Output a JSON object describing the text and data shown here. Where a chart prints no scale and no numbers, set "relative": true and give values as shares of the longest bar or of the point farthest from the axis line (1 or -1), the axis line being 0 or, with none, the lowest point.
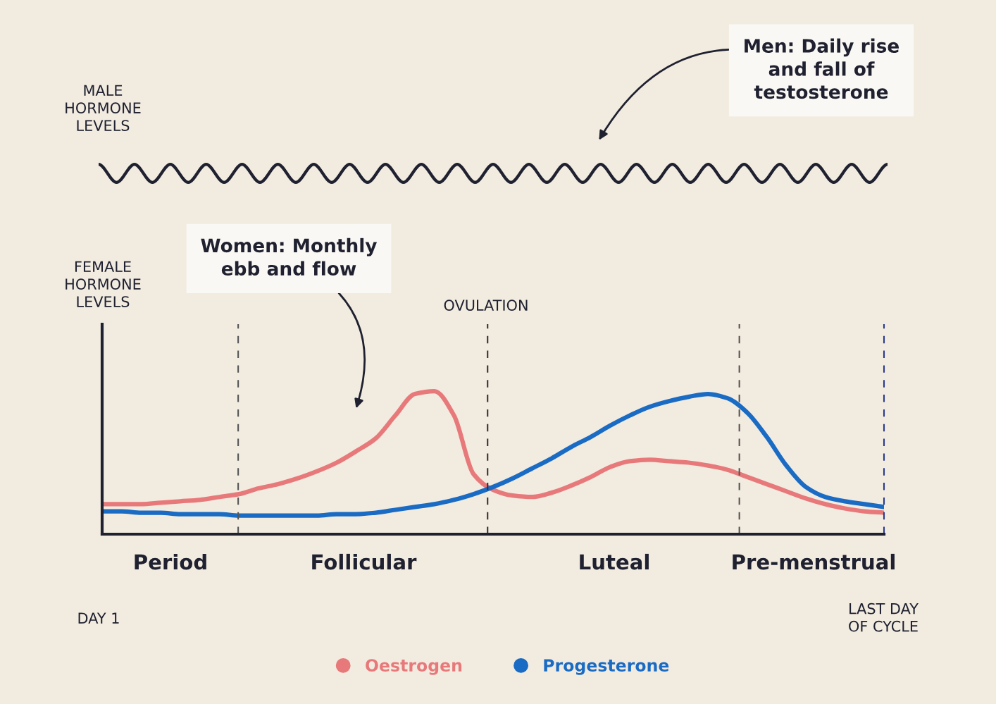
{
  "chart_data": [
    {
      "type": "line",
      "relative": true,
      "ylabel": "MALE\nHORMONE\nLEVELS",
      "legend": false,
      "line_style": "solid",
      "marker": "none",
      "categories": [
        null,
        null,
        null,
        null,
        null,
        null,
        null,
        null,
        null,
        null,
        null,
        null,
        null,
        null,
        null,
        null,
        null,
        null,
        null,
        null,
        null,
        null,
        null,
        null,
        null,
        null,
        null,
        null,
        null,
        null,
        null,
        null,
        null,
        null,
        null,
        null,
        null,
        null,
        null,
        null,
        null,
        null,
        null,
        null,
        null
      ],
      "series": [
        {
          "color": "#1f2130",
          "values": [
            1,
            0,
            1,
            0,
            1,
            0,
            1,
            0,
            1,
            0,
            1,
            0,
            1,
            0,
            1,
            0,
            1,
            0,
            1,
            0,
            1,
            0,
            1,
            0,
            1,
            0,
            1,
            0,
            1,
            0,
            1,
            0,
            1,
            0,
            1,
            0,
            1,
            0,
            1,
            0,
            1,
            0,
            1,
            0,
            1
          ]
        }
      ],
      "annotations": [
        "Men: Daily rise\nand fall of\ntestosterone"
      ]
    },
    {
      "type": "line",
      "relative": true,
      "ylabel": "FEMALE\nHORMONE\nLEVELS",
      "legend": "bottom",
      "line_style": "solid",
      "marker": "none",
      "categories": [
        null,
        null,
        null,
        null,
        null,
        null,
        null,
        null,
        null,
        null,
        null,
        null,
        null,
        null,
        null,
        null,
        null,
        null,
        null,
        null,
        null,
        null,
        null,
        null,
        null,
        null,
        null,
        null,
        null,
        null,
        null,
        null,
        null,
        null,
        null,
        null,
        null,
        null,
        null,
        null,
        null
      ],
      "series": [
        {
          "name": "Oestrogen",
          "color": "#e8797a",
          "values": [
            0.21,
            0.21,
            0.21,
            0.22,
            0.23,
            0.24,
            0.26,
            0.28,
            0.32,
            0.35,
            0.39,
            0.44,
            0.5,
            0.58,
            0.67,
            0.83,
            0.98,
            1.0,
            0.83,
            0.42,
            0.31,
            0.27,
            0.26,
            0.29,
            0.34,
            0.4,
            0.47,
            0.51,
            0.52,
            0.51,
            0.5,
            0.48,
            0.45,
            0.4,
            0.35,
            0.3,
            0.25,
            0.21,
            0.18,
            0.16,
            0.15
          ]
        },
        {
          "name": "Progesterone",
          "color": "#1a6bc4",
          "values": [
            0.16,
            0.16,
            0.15,
            0.15,
            0.14,
            0.14,
            0.14,
            0.13,
            0.13,
            0.13,
            0.13,
            0.13,
            0.14,
            0.14,
            0.15,
            0.17,
            0.19,
            0.21,
            0.24,
            0.28,
            0.33,
            0.39,
            0.46,
            0.53,
            0.61,
            0.68,
            0.76,
            0.83,
            0.89,
            0.93,
            0.96,
            0.98,
            0.95,
            0.85,
            0.68,
            0.48,
            0.33,
            0.26,
            0.23,
            0.21,
            0.19
          ]
        }
      ],
      "annotations": [
        "Women: Monthly\nebb and flow",
        "OVULATION",
        "Period",
        "Follicular",
        "Luteal",
        "Pre-menstrual",
        "DAY 1",
        "LAST DAY\nOF CYCLE"
      ]
    }
  ]
}
